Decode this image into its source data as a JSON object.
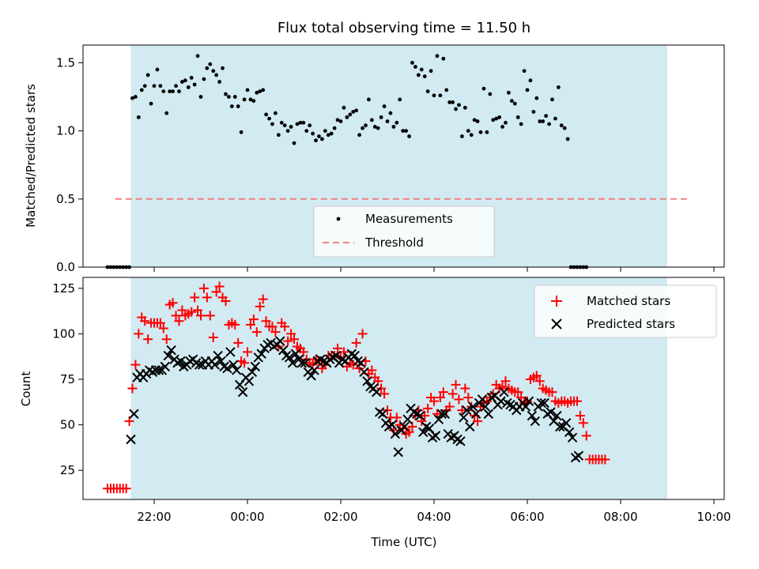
{
  "chart_data": [
    {
      "type": "scatter",
      "title": "Flux total observing time = 11.50 h",
      "ylabel": "Matched/Predicted stars",
      "xlabel": "",
      "ylim": [
        0,
        1.63
      ],
      "yticks": [
        "0.0",
        "0.5",
        "1.0",
        "1.5"
      ],
      "shaded_span": {
        "start": "21:30",
        "end": "09:00",
        "color": "#add8e6"
      },
      "legend_position": "lower-center",
      "threshold": {
        "name": "Threshold",
        "value": 0.5,
        "color": "#f08080",
        "x_start": "21:10",
        "x_end": "09:30"
      },
      "series": [
        {
          "name": "Measurements",
          "color": "#000000",
          "x_start": "21:00",
          "x_step_min": 4,
          "values": [
            0,
            0,
            0,
            0,
            0,
            0,
            0,
            0,
            1.24,
            1.25,
            1.1,
            1.3,
            1.33,
            1.41,
            1.2,
            1.33,
            1.45,
            1.33,
            1.29,
            1.13,
            1.29,
            1.29,
            1.33,
            1.29,
            1.36,
            1.37,
            1.32,
            1.39,
            1.34,
            1.55,
            1.25,
            1.38,
            1.46,
            1.49,
            1.44,
            1.41,
            1.36,
            1.46,
            1.27,
            1.25,
            1.18,
            1.25,
            1.18,
            0.99,
            1.23,
            1.3,
            1.23,
            1.22,
            1.28,
            1.29,
            1.3,
            1.12,
            1.09,
            1.05,
            1.13,
            0.97,
            1.06,
            1.04,
            1.0,
            1.03,
            0.91,
            1.05,
            1.06,
            1.06,
            1.0,
            1.04,
            0.98,
            0.93,
            0.96,
            0.94,
            1.0,
            0.97,
            0.98,
            1.02,
            1.08,
            1.07,
            1.17,
            1.1,
            1.12,
            1.14,
            1.15,
            0.97,
            1.02,
            1.04,
            1.23,
            1.08,
            1.03,
            1.02,
            1.1,
            1.18,
            1.07,
            1.13,
            1.03,
            1.06,
            1.23,
            1.0,
            1.0,
            0.96,
            1.5,
            1.47,
            1.41,
            1.45,
            1.4,
            1.29,
            1.44,
            1.26,
            1.55,
            1.26,
            1.53,
            1.3,
            1.21,
            1.21,
            1.16,
            1.19,
            0.96,
            1.17,
            1.0,
            0.97,
            1.08,
            1.07,
            0.99,
            1.31,
            0.99,
            1.27,
            1.08,
            1.09,
            1.1,
            1.03,
            1.06,
            1.28,
            1.22,
            1.2,
            1.1,
            1.05,
            1.44,
            1.3,
            1.37,
            1.14,
            1.24,
            1.07,
            1.07,
            1.11,
            1.05,
            1.23,
            1.09,
            1.32,
            1.04,
            1.02,
            0.94,
            0,
            0,
            0,
            0,
            0,
            0
          ]
        }
      ]
    },
    {
      "type": "scatter",
      "title": "",
      "ylabel": "Count",
      "xlabel": "Time (UTC)",
      "ylim": [
        9,
        131
      ],
      "yticks": [
        "25",
        "50",
        "75",
        "100",
        "125"
      ],
      "xticks": [
        "22:00",
        "00:00",
        "02:00",
        "04:00",
        "06:00",
        "08:00",
        "10:00"
      ],
      "shaded_span": {
        "start": "21:30",
        "end": "09:00",
        "color": "#add8e6"
      },
      "legend_position": "upper-right",
      "series": [
        {
          "name": "Matched stars",
          "marker": "plus",
          "color": "#ff0000",
          "x_start": "21:00",
          "x_step_min": 4,
          "values": [
            15,
            15,
            15,
            15,
            15,
            15,
            15,
            52,
            70,
            83,
            100,
            109,
            107,
            97,
            106,
            106,
            106,
            106,
            103,
            97,
            116,
            117,
            110,
            107,
            113,
            110,
            111,
            112,
            120,
            113,
            110,
            125,
            120,
            110,
            98,
            123,
            126,
            120,
            118,
            105,
            106,
            105,
            95,
            85,
            84,
            90,
            105,
            108,
            101,
            115,
            119,
            107,
            104,
            104,
            101,
            93,
            106,
            104,
            96,
            100,
            97,
            93,
            92,
            90,
            86,
            84,
            83,
            86,
            85,
            81,
            83,
            88,
            88,
            88,
            92,
            87,
            90,
            82,
            84,
            83,
            95,
            81,
            100,
            85,
            78,
            80,
            76,
            74,
            70,
            67,
            58,
            54,
            47,
            54,
            50,
            48,
            45,
            46,
            49,
            55,
            58,
            52,
            55,
            59,
            65,
            63,
            56,
            65,
            68,
            58,
            60,
            67,
            72,
            64,
            58,
            70,
            65,
            60,
            55,
            52,
            60,
            62,
            63,
            65,
            67,
            72,
            70,
            71,
            74,
            70,
            69,
            68,
            68,
            65,
            62,
            63,
            75,
            76,
            77,
            74,
            70,
            69,
            68,
            68,
            63,
            62,
            63,
            63,
            62,
            63,
            63,
            63,
            55,
            51,
            44,
            31,
            31,
            31,
            31,
            31,
            31
          ]
        },
        {
          "name": "Predicted stars",
          "marker": "x",
          "color": "#000000",
          "x_start": "21:30",
          "x_step_min": 4,
          "values": [
            42,
            56,
            76,
            78,
            76,
            78,
            80,
            79,
            80,
            80,
            80,
            82,
            88,
            91,
            86,
            84,
            85,
            82,
            83,
            85,
            86,
            84,
            83,
            83,
            85,
            83,
            85,
            83,
            88,
            85,
            82,
            81,
            90,
            83,
            80,
            72,
            68,
            76,
            74,
            79,
            82,
            87,
            89,
            92,
            94,
            95,
            93,
            94,
            96,
            91,
            88,
            87,
            84,
            89,
            86,
            84,
            84,
            79,
            77,
            80,
            85,
            86,
            85,
            84,
            86,
            87,
            88,
            84,
            86,
            85,
            87,
            89,
            88,
            85,
            84,
            79,
            74,
            71,
            70,
            68,
            57,
            56,
            51,
            49,
            50,
            45,
            35,
            47,
            49,
            53,
            59,
            57,
            56,
            55,
            46,
            49,
            48,
            43,
            44,
            53,
            56,
            56,
            45,
            43,
            44,
            42,
            41,
            54,
            58,
            49,
            60,
            56,
            62,
            64,
            60,
            56,
            65,
            66,
            61,
            63,
            68,
            62,
            61,
            60,
            58,
            60,
            62,
            60,
            63,
            55,
            52,
            60,
            62,
            62,
            56,
            57,
            52,
            55,
            49,
            49,
            51,
            46,
            43,
            32,
            33
          ]
        }
      ]
    }
  ]
}
